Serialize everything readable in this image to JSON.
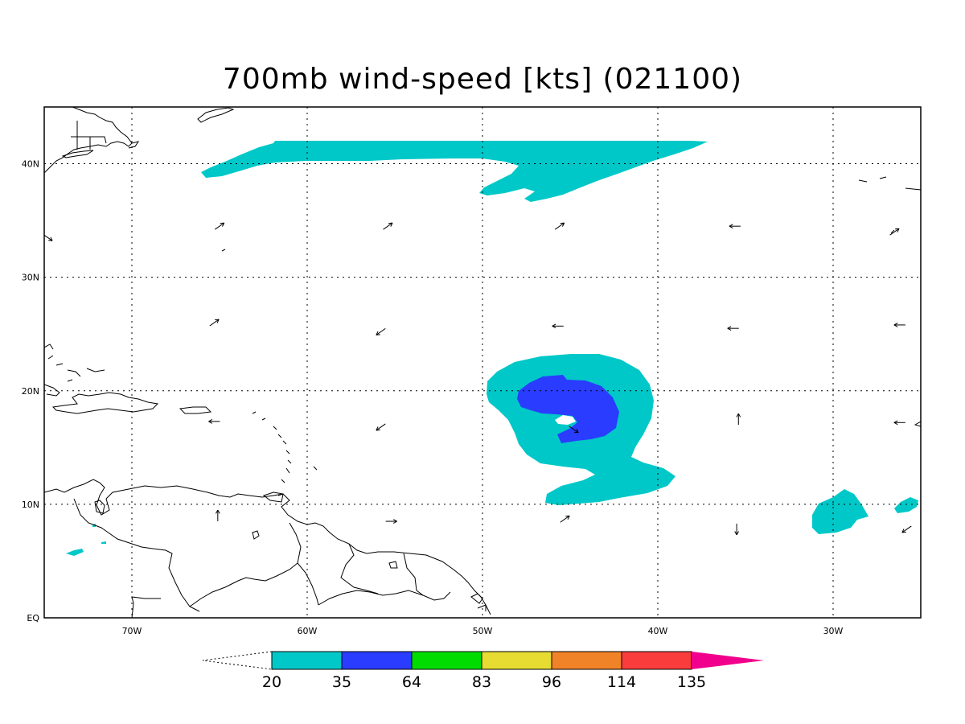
{
  "title": "700mb wind-speed [kts] (021100)",
  "map": {
    "lon_range": [
      -75,
      -25
    ],
    "lat_range": [
      0,
      45
    ],
    "lon_ticks": [
      {
        "value": -70,
        "label": "70W"
      },
      {
        "value": -60,
        "label": "60W"
      },
      {
        "value": -50,
        "label": "50W"
      },
      {
        "value": -40,
        "label": "40W"
      },
      {
        "value": -30,
        "label": "30W"
      }
    ],
    "lat_ticks": [
      {
        "value": 0,
        "label": "EQ"
      },
      {
        "value": 10,
        "label": "10N"
      },
      {
        "value": 20,
        "label": "20N"
      },
      {
        "value": 30,
        "label": "30N"
      },
      {
        "value": 40,
        "label": "40N"
      }
    ],
    "grid": true,
    "fill_colors": {
      "20": "#00c8c8",
      "35": "#2a3cff"
    },
    "coast_color": "#000000"
  },
  "colorbar": {
    "levels": [
      {
        "label": "20",
        "color": "#00c8c8"
      },
      {
        "label": "35",
        "color": "#2a3cff"
      },
      {
        "label": "64",
        "color": "#00dc00"
      },
      {
        "label": "83",
        "color": "#e6dc32"
      },
      {
        "label": "96",
        "color": "#f08228"
      },
      {
        "label": "114",
        "color": "#fa3c3c"
      },
      {
        "label": "135",
        "color": "#f0008c"
      }
    ],
    "under_color": "#ffffff",
    "over_color": "#f0008c"
  },
  "wind_vectors": [
    {
      "lon": -65,
      "lat": 34.5,
      "dir": "NE"
    },
    {
      "lon": -55.4,
      "lat": 34.5,
      "dir": "NE"
    },
    {
      "lon": -45.6,
      "lat": 34.5,
      "dir": "NE"
    },
    {
      "lon": -35.6,
      "lat": 34.5,
      "dir": "W"
    },
    {
      "lon": -26.5,
      "lat": 34.0,
      "dir": "NE"
    },
    {
      "lon": -74.8,
      "lat": 33.5,
      "dir": "SE"
    },
    {
      "lon": -65.3,
      "lat": 26.0,
      "dir": "NE"
    },
    {
      "lon": -55.8,
      "lat": 25.2,
      "dir": "SW"
    },
    {
      "lon": -45.7,
      "lat": 25.7,
      "dir": "W"
    },
    {
      "lon": -35.7,
      "lat": 25.5,
      "dir": "W"
    },
    {
      "lon": -26.2,
      "lat": 25.8,
      "dir": "W"
    },
    {
      "lon": -65.3,
      "lat": 17.3,
      "dir": "W"
    },
    {
      "lon": -55.8,
      "lat": 16.8,
      "dir": "SW"
    },
    {
      "lon": -44.8,
      "lat": 16.6,
      "dir": "SE"
    },
    {
      "lon": -35.4,
      "lat": 17.5,
      "dir": "N"
    },
    {
      "lon": -26.2,
      "lat": 17.2,
      "dir": "W"
    },
    {
      "lon": -65.1,
      "lat": 9.0,
      "dir": "N"
    },
    {
      "lon": -55.2,
      "lat": 8.5,
      "dir": "E"
    },
    {
      "lon": -45.3,
      "lat": 8.7,
      "dir": "NE"
    },
    {
      "lon": -35.5,
      "lat": 7.8,
      "dir": "S"
    },
    {
      "lon": -25.8,
      "lat": 7.8,
      "dir": "SW"
    }
  ]
}
